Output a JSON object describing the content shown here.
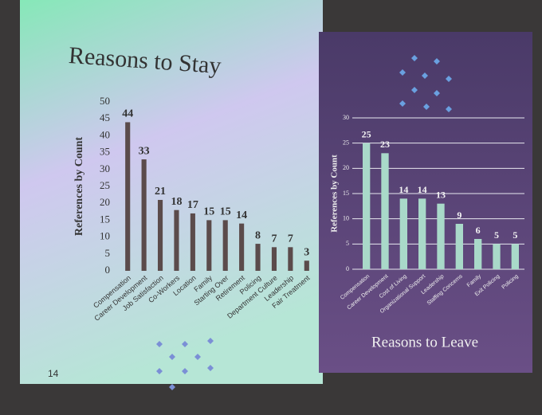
{
  "page_number": "14",
  "chart_data": [
    {
      "type": "bar",
      "title": "Reasons to Stay",
      "y_label": "References by Count",
      "categories": [
        "Compensation",
        "Career Development",
        "Job Satisfaction",
        "Co-Workers",
        "Location",
        "Family",
        "Starting Over",
        "Retirement",
        "Policing",
        "Department Culture",
        "Leadership",
        "Fair Treatment"
      ],
      "values": [
        44,
        33,
        21,
        18,
        17,
        15,
        15,
        14,
        8,
        7,
        7,
        3
      ],
      "color": "#5b4b4b",
      "ylim": [
        0,
        50
      ],
      "yticks": [
        0,
        5,
        10,
        15,
        20,
        25,
        30,
        35,
        40,
        45,
        50
      ],
      "grid": false
    },
    {
      "type": "bar",
      "title": "Reasons to Leave",
      "y_label": "References by Count",
      "categories": [
        "Compensation",
        "Career Development",
        "Cost of Living",
        "Organizational Support",
        "Leadership",
        "Staffing Concerns",
        "Family",
        "Exit Policing",
        "Policing"
      ],
      "values": [
        25,
        23,
        14,
        14,
        13,
        9,
        6,
        5,
        5
      ],
      "color": "#a9d9c9",
      "ylim": [
        0,
        30
      ],
      "yticks": [
        0,
        5,
        10,
        15,
        20,
        25,
        30
      ],
      "grid": true
    }
  ]
}
